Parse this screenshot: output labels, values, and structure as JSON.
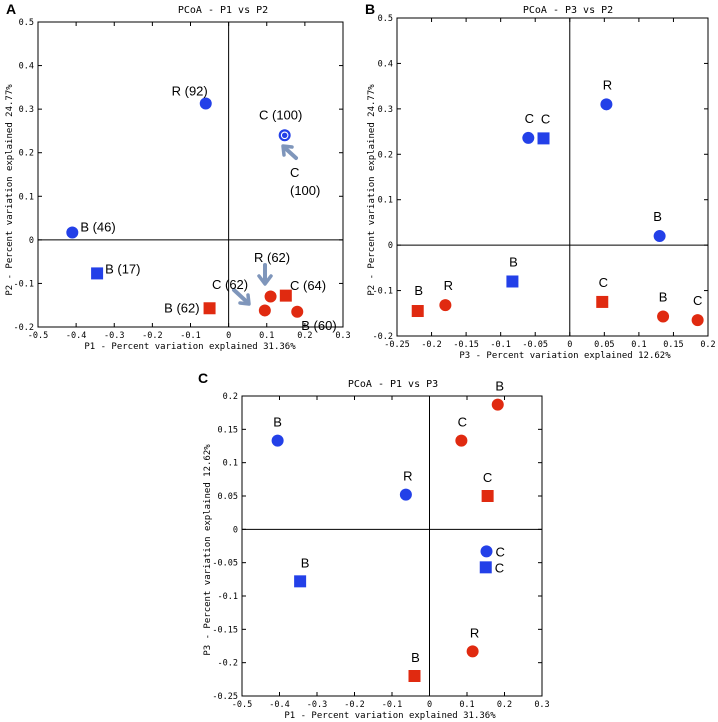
{
  "colors": {
    "blue": "#2340e8",
    "red": "#e02a10",
    "arrow": "#7f96bb",
    "frame": "#000000"
  },
  "chart_data": [
    {
      "panel": "A",
      "type": "scatter",
      "title": "PCoA - P1 vs P2",
      "xlabel": "P1 - Percent variation explained 31.36%",
      "ylabel": "P2 - Percent variation explained 24.77%",
      "xlim": [
        -0.5,
        0.3
      ],
      "ylim": [
        -0.2,
        0.5
      ],
      "xticks": [
        -0.5,
        -0.4,
        -0.3,
        -0.2,
        -0.1,
        0,
        0.1,
        0.2,
        0.3
      ],
      "yticks": [
        -0.2,
        -0.1,
        0,
        0.1,
        0.2,
        0.3,
        0.4,
        0.5
      ],
      "points": [
        {
          "x": -0.06,
          "y": 0.313,
          "shape": "circle",
          "color": "blue",
          "label": "R (92)"
        },
        {
          "x": 0.147,
          "y": 0.24,
          "shape": "ring",
          "color": "blue",
          "label": "C (100)"
        },
        {
          "x": -0.41,
          "y": 0.017,
          "shape": "circle",
          "color": "blue",
          "label": "B (46)"
        },
        {
          "x": -0.345,
          "y": -0.077,
          "shape": "square",
          "color": "blue",
          "label": "B (17)"
        },
        {
          "x": -0.05,
          "y": -0.157,
          "shape": "square",
          "color": "red",
          "label": "B (62)"
        },
        {
          "x": 0.095,
          "y": -0.162,
          "shape": "circle",
          "color": "red",
          "label": ""
        },
        {
          "x": 0.11,
          "y": -0.13,
          "shape": "circle",
          "color": "red",
          "label": ""
        },
        {
          "x": 0.15,
          "y": -0.128,
          "shape": "square",
          "color": "red",
          "label": ""
        },
        {
          "x": 0.18,
          "y": -0.165,
          "shape": "circle",
          "color": "red",
          "label": "B (60)"
        }
      ],
      "annotations": [
        "C (100)",
        "R (62)",
        "C (62)",
        "C (64)"
      ]
    },
    {
      "panel": "B",
      "type": "scatter",
      "title": "PCoA - P3 vs P2",
      "xlabel": "P3 - Percent variation explained 12.62%",
      "ylabel": "P2 - Percent variation explained 24.77%",
      "xlim": [
        -0.25,
        0.2
      ],
      "ylim": [
        -0.2,
        0.5
      ],
      "xticks": [
        -0.25,
        -0.2,
        -0.15,
        -0.1,
        -0.05,
        0,
        0.05,
        0.1,
        0.15,
        0.2
      ],
      "yticks": [
        -0.2,
        -0.1,
        0,
        0.1,
        0.2,
        0.3,
        0.4,
        0.5
      ],
      "points": [
        {
          "x": 0.053,
          "y": 0.31,
          "shape": "circle",
          "color": "blue",
          "label": "R"
        },
        {
          "x": -0.06,
          "y": 0.236,
          "shape": "circle",
          "color": "blue",
          "label": "C"
        },
        {
          "x": -0.038,
          "y": 0.235,
          "shape": "square",
          "color": "blue",
          "label": "C"
        },
        {
          "x": 0.13,
          "y": 0.02,
          "shape": "circle",
          "color": "blue",
          "label": "B"
        },
        {
          "x": -0.083,
          "y": -0.08,
          "shape": "square",
          "color": "blue",
          "label": "B"
        },
        {
          "x": -0.22,
          "y": -0.145,
          "shape": "square",
          "color": "red",
          "label": "B"
        },
        {
          "x": -0.18,
          "y": -0.132,
          "shape": "circle",
          "color": "red",
          "label": "R"
        },
        {
          "x": 0.047,
          "y": -0.125,
          "shape": "square",
          "color": "red",
          "label": "C"
        },
        {
          "x": 0.135,
          "y": -0.157,
          "shape": "circle",
          "color": "red",
          "label": "B"
        },
        {
          "x": 0.185,
          "y": -0.165,
          "shape": "circle",
          "color": "red",
          "label": "C"
        }
      ]
    },
    {
      "panel": "C",
      "type": "scatter",
      "title": "PCoA - P1 vs P3",
      "xlabel": "P1 - Percent variation explained 31.36%",
      "ylabel": "P3 - Percent variation explained 12.62%",
      "xlim": [
        -0.5,
        0.3
      ],
      "ylim": [
        -0.25,
        0.2
      ],
      "xticks": [
        -0.5,
        -0.4,
        -0.3,
        -0.2,
        -0.1,
        0,
        0.1,
        0.2,
        0.3
      ],
      "yticks": [
        -0.25,
        -0.2,
        -0.15,
        -0.1,
        -0.05,
        0,
        0.05,
        0.1,
        0.15,
        0.2
      ],
      "points": [
        {
          "x": -0.405,
          "y": 0.133,
          "shape": "circle",
          "color": "blue",
          "label": "B"
        },
        {
          "x": -0.063,
          "y": 0.052,
          "shape": "circle",
          "color": "blue",
          "label": "R"
        },
        {
          "x": 0.152,
          "y": -0.033,
          "shape": "circle",
          "color": "blue",
          "label": "C"
        },
        {
          "x": 0.15,
          "y": -0.057,
          "shape": "square",
          "color": "blue",
          "label": "C"
        },
        {
          "x": -0.345,
          "y": -0.078,
          "shape": "square",
          "color": "blue",
          "label": "B"
        },
        {
          "x": 0.182,
          "y": 0.187,
          "shape": "circle",
          "color": "red",
          "label": "B"
        },
        {
          "x": 0.085,
          "y": 0.133,
          "shape": "circle",
          "color": "red",
          "label": "C"
        },
        {
          "x": 0.155,
          "y": 0.05,
          "shape": "square",
          "color": "red",
          "label": "C"
        },
        {
          "x": 0.115,
          "y": -0.183,
          "shape": "circle",
          "color": "red",
          "label": "R"
        },
        {
          "x": -0.04,
          "y": -0.22,
          "shape": "square",
          "color": "red",
          "label": "B"
        }
      ]
    }
  ]
}
